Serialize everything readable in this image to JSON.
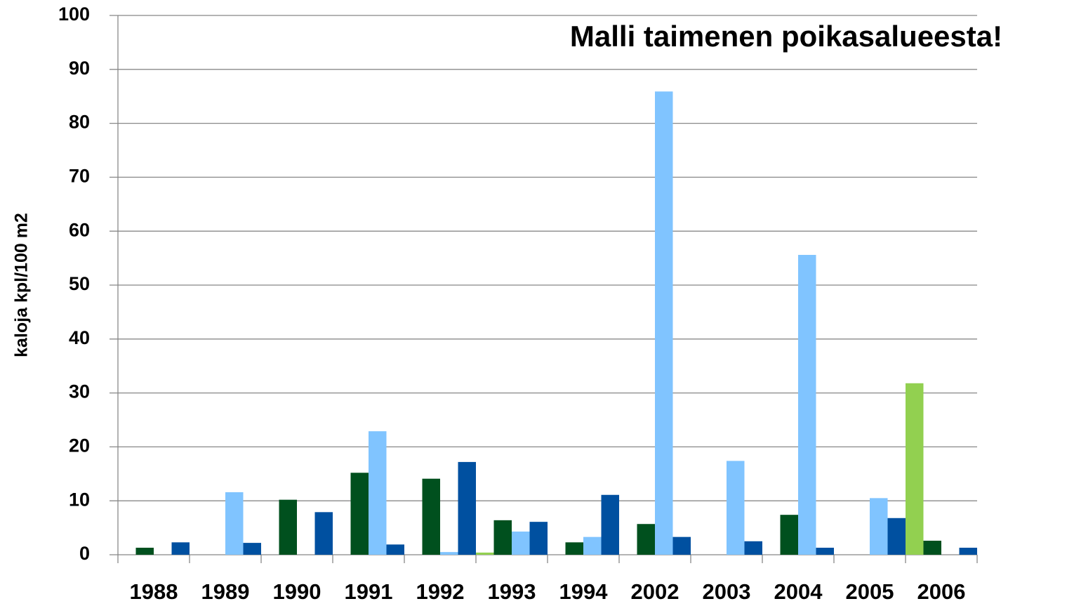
{
  "chart_data": {
    "type": "bar",
    "title": "Malli taimenen poikasalueesta!",
    "y_label": "kaloja kpl/100 m2",
    "categories": [
      "1988",
      "1989",
      "1990",
      "1991",
      "1992",
      "1993",
      "1994",
      "2002",
      "2003",
      "2004",
      "2005",
      "2006"
    ],
    "series": [
      {
        "color": "#92d050",
        "values": [
          0,
          0,
          0,
          0,
          0,
          0.4,
          0,
          0,
          0,
          0,
          0,
          31.8
        ]
      },
      {
        "color": "#00501e",
        "values": [
          1.3,
          0,
          10.2,
          15.2,
          14.1,
          6.4,
          2.3,
          5.7,
          0,
          7.4,
          0,
          2.6
        ]
      },
      {
        "color": "#80c4ff",
        "values": [
          0,
          11.6,
          0,
          22.9,
          0.5,
          4.3,
          3.3,
          85.9,
          17.4,
          55.6,
          10.5,
          0
        ]
      },
      {
        "color": "#0050a0",
        "values": [
          2.3,
          2.2,
          7.9,
          1.9,
          17.2,
          6.1,
          11.1,
          3.3,
          2.5,
          1.3,
          6.8,
          1.3
        ]
      }
    ],
    "ylim": [
      0,
      100
    ],
    "yticks": [
      0,
      10,
      20,
      30,
      40,
      50,
      60,
      70,
      80,
      90,
      100
    ],
    "grid": true
  }
}
